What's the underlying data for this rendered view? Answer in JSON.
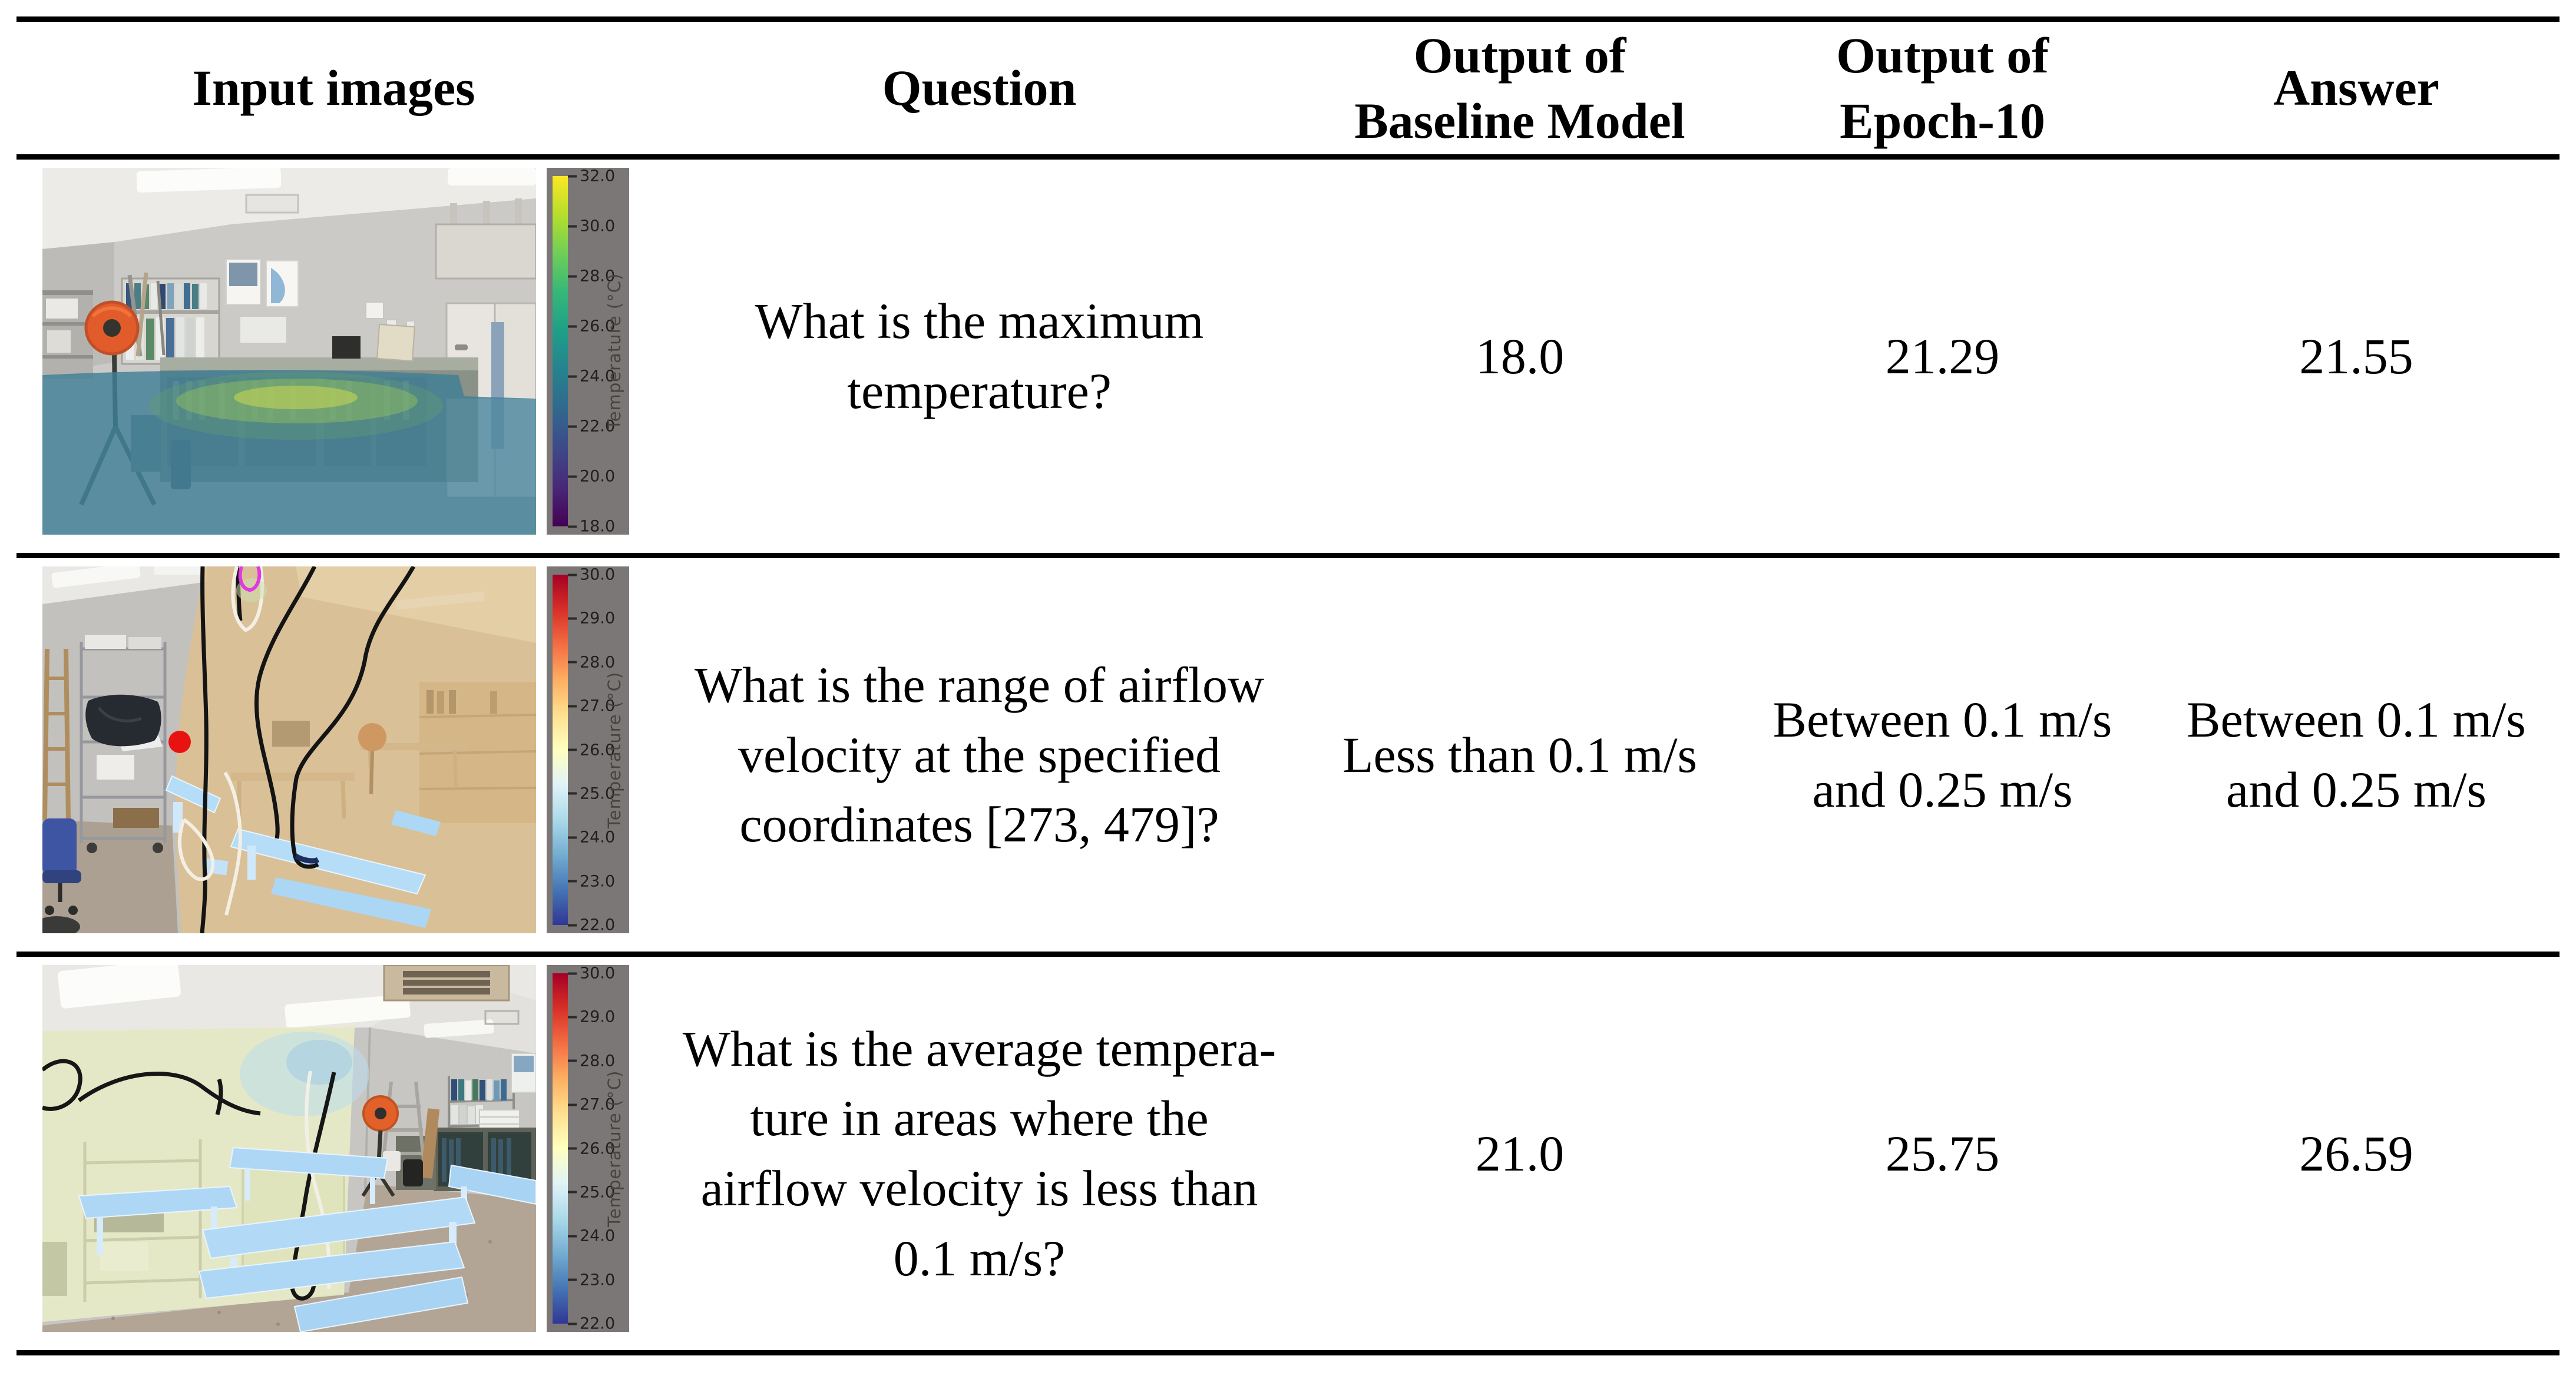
{
  "table": {
    "columns": [
      "Input images",
      "Question",
      "Output of\nBaseline Model",
      "Output of\nEpoch-10",
      "Answer"
    ],
    "rows": [
      {
        "image": {
          "description": "Laboratory room photo with a semi-transparent blue-green temperature field overlaid on the lower half and a yellow-green warm patch over the center cabinets",
          "overlay_color": "#3f7f96",
          "warm_patch_color": "#c3d454",
          "colorbar": {
            "label": "Temperature (°C)",
            "ticks": [
              "32.0",
              "30.0",
              "28.0",
              "26.0",
              "24.0",
              "22.0",
              "20.0",
              "18.0"
            ],
            "gradient": [
              "#fde725",
              "#b5de2b",
              "#6ece58",
              "#35b779",
              "#1f9e89",
              "#26828e",
              "#31688e",
              "#3e4989",
              "#482878",
              "#440154"
            ],
            "background": "#7b7776"
          }
        },
        "question": "What is the maximum\ntemperature?",
        "baseline_output": "18.0",
        "epoch10_output": "21.29",
        "answer": "21.55"
      },
      {
        "image": {
          "description": "Room photo with a beige temperature overlay on the right wall plane, black and white contour lines, a magenta contour at the top, light-blue highlighted benches and a red point marker at the queried coordinates",
          "overlay_color": "#dcc091",
          "point_marker_color": "#e81210",
          "magenta_contour_color": "#df3adf",
          "bench_highlight_color": "#b5ddf8",
          "colorbar": {
            "label": "Temperature (°C)",
            "ticks": [
              "30.0",
              "29.0",
              "28.0",
              "27.0",
              "26.0",
              "25.0",
              "24.0",
              "23.0",
              "22.0"
            ],
            "gradient": [
              "#a50026",
              "#d73027",
              "#f46d43",
              "#fdae61",
              "#fee090",
              "#ffffbf",
              "#e0f3f8",
              "#abd9e9",
              "#74add1",
              "#4575b4",
              "#313695"
            ],
            "background": "#7b7776"
          }
        },
        "question": "What is the range of airflow\nvelocity at the specified\ncoordinates [273, 479]?",
        "baseline_output": "Less than 0.1 m/s",
        "epoch10_output": "Between 0.1 m/s\nand 0.25 m/s",
        "answer": "Between 0.1 m/s\nand 0.25 m/s"
      },
      {
        "image": {
          "description": "Classroom photo with a pale yellow-green temperature overlay on the left wall, black and white contour lines and light-blue highlighted benches on the floor",
          "overlay_color": "#e8ebc7",
          "bench_highlight_color": "#aed7f5",
          "colorbar": {
            "label": "Temperature (°C)",
            "ticks": [
              "30.0",
              "29.0",
              "28.0",
              "27.0",
              "26.0",
              "25.0",
              "24.0",
              "23.0",
              "22.0"
            ],
            "gradient": [
              "#a50026",
              "#d73027",
              "#f46d43",
              "#fdae61",
              "#fee090",
              "#ffffbf",
              "#e0f3f8",
              "#abd9e9",
              "#74add1",
              "#4575b4",
              "#313695"
            ],
            "background": "#7b7776"
          }
        },
        "question": "What is the average tempera-\nture in areas where the\nairflow velocity is less than\n0.1 m/s?",
        "baseline_output": "21.0",
        "epoch10_output": "25.75",
        "answer": "26.59"
      }
    ]
  }
}
